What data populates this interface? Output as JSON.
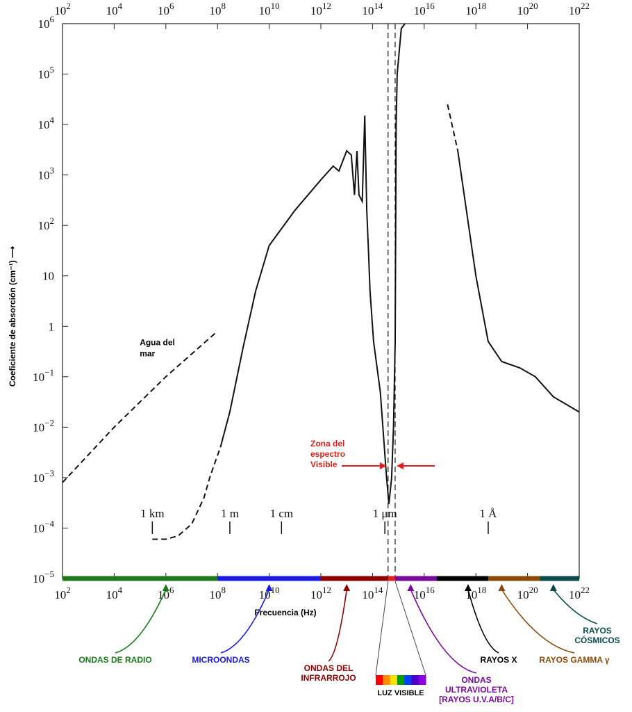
{
  "chart_data": {
    "type": "line",
    "xlabel": "Frecuencia (Hz)",
    "ylabel": "Coeficiente de absorción (cm⁻¹) ⟶",
    "x_scale": "log",
    "y_scale": "log",
    "xlim": [
      100,
      1e+22
    ],
    "ylim": [
      1e-05,
      1000000.0
    ],
    "x_ticks": [
      {
        "value": 100.0,
        "base": "10",
        "exp": "2"
      },
      {
        "value": 10000.0,
        "base": "10",
        "exp": "4"
      },
      {
        "value": 1000000.0,
        "base": "10",
        "exp": "6"
      },
      {
        "value": 100000000.0,
        "base": "10",
        "exp": "8"
      },
      {
        "value": 10000000000.0,
        "base": "10",
        "exp": "10"
      },
      {
        "value": 1000000000000.0,
        "base": "10",
        "exp": "12"
      },
      {
        "value": 100000000000000.0,
        "base": "10",
        "exp": "14"
      },
      {
        "value": 1e+16,
        "base": "10",
        "exp": "16"
      },
      {
        "value": 1e+18,
        "base": "10",
        "exp": "18"
      },
      {
        "value": 1e+20,
        "base": "10",
        "exp": "20"
      },
      {
        "value": 1e+22,
        "base": "10",
        "exp": "22"
      }
    ],
    "y_ticks": [
      {
        "value": 1000000.0,
        "base": "10",
        "exp": "6"
      },
      {
        "value": 100000.0,
        "base": "10",
        "exp": "5"
      },
      {
        "value": 10000.0,
        "base": "10",
        "exp": "4"
      },
      {
        "value": 1000.0,
        "base": "10",
        "exp": "3"
      },
      {
        "value": 100.0,
        "base": "10",
        "exp": "2"
      },
      {
        "value": 10,
        "base": "10",
        "exp": ""
      },
      {
        "value": 1,
        "base": "1",
        "exp": ""
      },
      {
        "value": 0.1,
        "base": "10",
        "exp": "−1"
      },
      {
        "value": 0.01,
        "base": "10",
        "exp": "−2"
      },
      {
        "value": 0.001,
        "base": "10",
        "exp": "−3"
      },
      {
        "value": 0.0001,
        "base": "10",
        "exp": "−4"
      },
      {
        "value": 1e-05,
        "base": "10",
        "exp": "−5"
      }
    ],
    "series": [
      {
        "name": "",
        "style": "dashed",
        "points": [
          [
            300000.0,
            6e-05
          ],
          [
            1000000.0,
            6e-05
          ],
          [
            3000000.0,
            7e-05
          ],
          [
            10000000.0,
            0.00012
          ],
          [
            30000000.0,
            0.0004
          ],
          [
            50000000.0,
            0.001
          ],
          [
            80000000.0,
            0.002
          ],
          [
            130000000.0,
            0.004
          ]
        ]
      },
      {
        "name": "",
        "style": "solid",
        "points": [
          [
            130000000.0,
            0.004
          ],
          [
            300000000.0,
            0.02
          ],
          [
            1000000000.0,
            0.4
          ],
          [
            3000000000.0,
            5
          ],
          [
            10000000000.0,
            40
          ],
          [
            100000000000.0,
            200
          ],
          [
            1000000000000.0,
            800
          ],
          [
            3000000000000.0,
            1500
          ],
          [
            5000000000000.0,
            1200
          ],
          [
            10000000000000.0,
            3000
          ],
          [
            15000000000000.0,
            2500
          ],
          [
            20000000000000.0,
            400
          ],
          [
            25000000000000.0,
            3000
          ],
          [
            30000000000000.0,
            400
          ],
          [
            40000000000000.0,
            300
          ],
          [
            50000000000000.0,
            15000
          ],
          [
            60000000000000.0,
            200
          ],
          [
            70000000000000.0,
            30
          ],
          [
            80000000000000.0,
            5
          ],
          [
            110000000000000.0,
            0.5
          ],
          [
            200000000000000.0,
            0.05
          ],
          [
            350000000000000.0,
            0.001
          ],
          [
            430000000000000.0,
            0.0003
          ],
          [
            550000000000000.0,
            0.001
          ],
          [
            650000000000000.0,
            0.01
          ],
          [
            750000000000000.0,
            0.5
          ],
          [
            820000000000000.0,
            10000.0
          ],
          [
            900000000000000.0,
            100000.0
          ],
          [
            1300000000000000.0,
            800000.0
          ],
          [
            1800000000000000.0,
            1000000.0
          ]
        ]
      },
      {
        "name": "",
        "style": "dashed",
        "points": [
          [
            8e+16,
            25000
          ],
          [
            2e+17,
            3000
          ]
        ]
      },
      {
        "name": "",
        "style": "solid",
        "points": [
          [
            2e+17,
            3000
          ],
          [
            1e+18,
            10
          ],
          [
            3e+18,
            0.5
          ],
          [
            1e+19,
            0.2
          ],
          [
            5e+19,
            0.15
          ],
          [
            2e+20,
            0.1
          ],
          [
            1e+21,
            0.04
          ],
          [
            1e+22,
            0.02
          ]
        ]
      },
      {
        "name": "Agua del mar",
        "style": "dashed",
        "points": [
          [
            100,
            0.0008
          ],
          [
            10000.0,
            0.01
          ],
          [
            1000000.0,
            0.1
          ],
          [
            100000000.0,
            0.8
          ]
        ]
      }
    ],
    "wavelength_markers": [
      {
        "label": "1 km",
        "freq": 300000.0
      },
      {
        "label": "1 m",
        "freq": 300000000.0
      },
      {
        "label": "1 cm",
        "freq": 30000000000.0
      },
      {
        "label": "1 μm",
        "freq": 300000000000000.0
      },
      {
        "label": "1 Å",
        "freq": 3e+18
      }
    ],
    "visible_zone": {
      "label_lines": [
        "Zona del",
        "espectro",
        "Visible"
      ],
      "lines_freq": [
        400000000000000.0,
        750000000000000.0
      ],
      "color": "#e02020"
    },
    "bands": [
      {
        "label_lines": [
          "ONDAS DE RADIO"
        ],
        "from": 100.0,
        "to": 100000000.0,
        "color": "#1a7a1a",
        "arrow_freq": 1000000.0
      },
      {
        "label_lines": [
          "MICROONDAS"
        ],
        "from": 100000000.0,
        "to": 1000000000000.0,
        "color": "#1a1ae0",
        "arrow_freq": 10000000000.0
      },
      {
        "label_lines": [
          "ONDAS DEL",
          "INFRARROJO"
        ],
        "from": 1000000000000.0,
        "to": 400000000000000.0,
        "color": "#8b0000",
        "arrow_freq": 10000000000000.0
      },
      {
        "label_lines": [
          "ONDAS",
          "ULTRAVIOLETA",
          "[RAYOS U.V.A/B/C]"
        ],
        "from": 750000000000000.0,
        "to": 3e+16,
        "color": "#7a0a9a",
        "arrow_freq": 3000000000000000.0
      },
      {
        "label_lines": [
          "RAYOS X"
        ],
        "from": 3e+16,
        "to": 3e+18,
        "color": "#000000",
        "arrow_freq": 5e+17
      },
      {
        "label_lines": [
          "RAYOS GAMMA γ"
        ],
        "from": 3e+18,
        "to": 3e+20,
        "color": "#8b4a0a",
        "arrow_freq": 1e+19
      },
      {
        "label_lines": [
          "RAYOS",
          "CÓSMICOS"
        ],
        "from": 3e+20,
        "to": 1e+22,
        "color": "#0b4a4a",
        "arrow_freq": 1e+21
      }
    ],
    "visible_light": {
      "label": "LUZ VISIBLE",
      "colors": [
        "#ff0000",
        "#ff8c00",
        "#ffe000",
        "#00a000",
        "#0040ff",
        "#4b00c8",
        "#8a00e0"
      ]
    }
  }
}
